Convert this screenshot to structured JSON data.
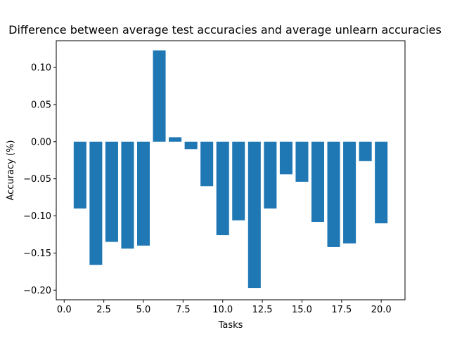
{
  "chart_data": {
    "type": "bar",
    "title": "Difference between average test accuracies and average unlearn accuracies",
    "xlabel": "Tasks",
    "ylabel": "Accuracy (%)",
    "x": [
      1,
      2,
      3,
      4,
      5,
      6,
      7,
      8,
      9,
      10,
      11,
      12,
      13,
      14,
      15,
      16,
      17,
      18,
      19,
      20
    ],
    "values": [
      -0.09,
      -0.166,
      -0.135,
      -0.144,
      -0.14,
      0.123,
      0.006,
      -0.01,
      -0.06,
      -0.126,
      -0.106,
      -0.197,
      -0.09,
      -0.044,
      -0.054,
      -0.108,
      -0.142,
      -0.137,
      -0.026,
      -0.11
    ],
    "xlim": [
      -0.5,
      21.5
    ],
    "ylim": [
      -0.213,
      0.136
    ],
    "xticks": [
      0.0,
      2.5,
      5.0,
      7.5,
      10.0,
      12.5,
      15.0,
      17.5,
      20.0
    ],
    "xtick_labels": [
      "0.0",
      "2.5",
      "5.0",
      "7.5",
      "10.0",
      "12.5",
      "15.0",
      "17.5",
      "20.0"
    ],
    "yticks": [
      -0.2,
      -0.15,
      -0.1,
      -0.05,
      0.0,
      0.05,
      0.1
    ],
    "ytick_labels": [
      "−0.20",
      "−0.15",
      "−0.10",
      "−0.05",
      "0.00",
      "0.05",
      "0.10"
    ],
    "bar_color": "#1f77b4",
    "grid": false,
    "legend": "none"
  }
}
